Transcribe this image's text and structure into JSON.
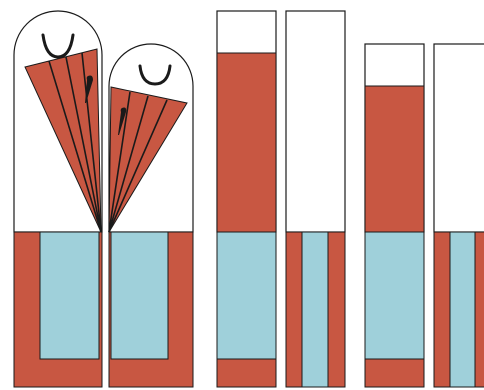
{
  "palette": {
    "background": "#ffffff",
    "terracotta": "#c85742",
    "light_blue": "#9fd0da",
    "outline": "#1a1a1a"
  },
  "figures": [
    {
      "kind": "arched-panel-with-fan",
      "expression": "smile",
      "fan_color": "terracotta",
      "base_pattern": "u-frame"
    },
    {
      "kind": "arched-panel-with-fan",
      "expression": "smile",
      "fan_color": "terracotta",
      "base_pattern": "u-frame"
    },
    {
      "kind": "rectangle-panel",
      "fill_fraction_of_upper": 0.82,
      "base_pattern": "solid-blue-with-red-foot"
    },
    {
      "kind": "rectangle-panel",
      "fill_fraction_of_upper": 0.0,
      "base_pattern": "blue-stripe"
    },
    {
      "kind": "rectangle-panel",
      "fill_fraction_of_upper": 0.77,
      "base_pattern": "solid-blue-with-red-foot"
    },
    {
      "kind": "rectangle-panel",
      "fill_fraction_of_upper": 0.0,
      "base_pattern": "blue-stripe"
    }
  ]
}
